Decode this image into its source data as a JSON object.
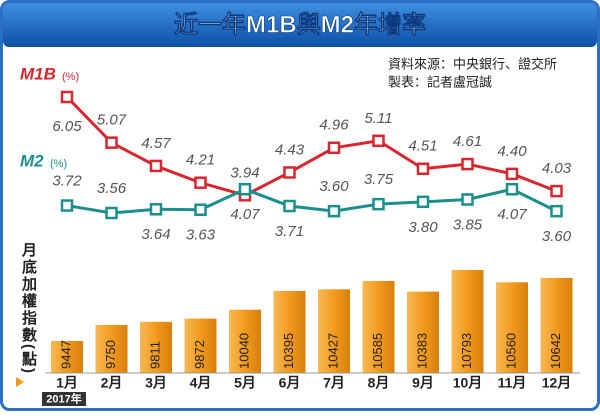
{
  "header": {
    "title": "近一年M1B與M2年增率",
    "source": "資料來源：中央銀行、證交所",
    "author": "製表：記者盧冠誠"
  },
  "chart_data": [
    {
      "type": "line",
      "series": [
        {
          "name": "M1B",
          "unit": "(%)",
          "color": "#d8262e",
          "values": [
            6.05,
            5.07,
            4.57,
            4.21,
            3.94,
            4.43,
            4.96,
            5.11,
            4.51,
            4.61,
            4.4,
            4.03
          ],
          "value_labels": [
            "6.05",
            "5.07",
            "4.57",
            "4.21",
            "3.94",
            "4.43",
            "4.96",
            "5.11",
            "4.51",
            "4.61",
            "4.40",
            "4.03"
          ]
        },
        {
          "name": "M2",
          "unit": "(%)",
          "color": "#1b8f8c",
          "values": [
            3.72,
            3.56,
            3.64,
            3.63,
            4.07,
            3.71,
            3.6,
            3.75,
            3.8,
            3.85,
            4.07,
            3.6
          ],
          "value_labels": [
            "3.72",
            "3.56",
            "3.64",
            "3.63",
            "4.07",
            "3.71",
            "3.60",
            "3.75",
            "3.80",
            "3.85",
            "4.07",
            "3.60"
          ]
        }
      ]
    },
    {
      "type": "bar",
      "y_label": "月底加權指數(點)",
      "x_note": "2017年",
      "color": "#f39a1c",
      "categories": [
        "1月",
        "2月",
        "3月",
        "4月",
        "5月",
        "6月",
        "7月",
        "8月",
        "9月",
        "10月",
        "11月",
        "12月"
      ],
      "values": [
        9447,
        9750,
        9811,
        9872,
        10040,
        10395,
        10427,
        10585,
        10383,
        10793,
        10560,
        10642
      ]
    }
  ]
}
